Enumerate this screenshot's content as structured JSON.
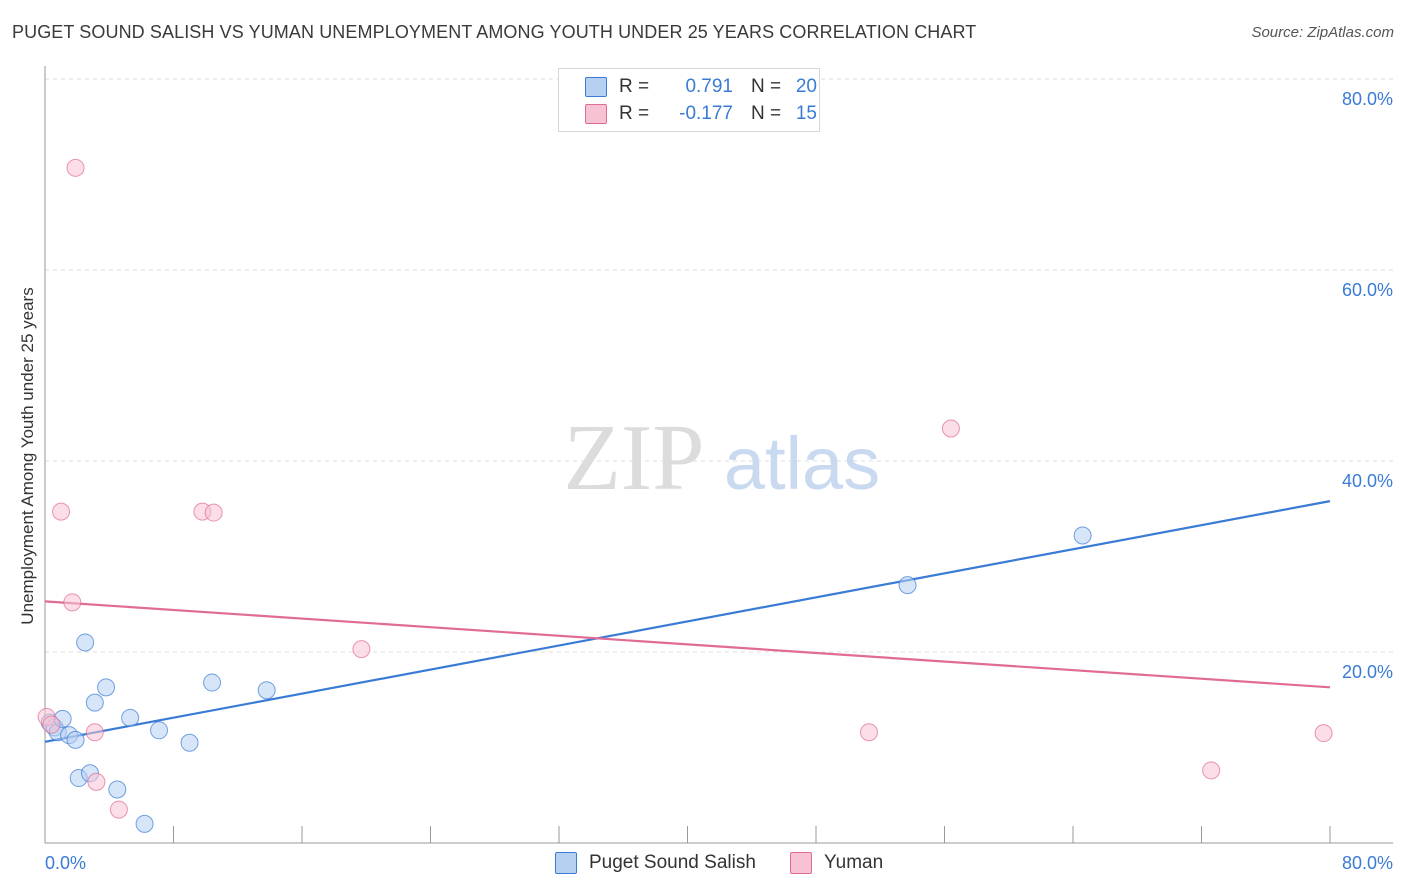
{
  "title": "PUGET SOUND SALISH VS YUMAN UNEMPLOYMENT AMONG YOUTH UNDER 25 YEARS CORRELATION CHART",
  "source": "Source: ZipAtlas.com",
  "watermark": {
    "zip": "ZIP",
    "atlas": "atlas"
  },
  "legend": {
    "rows": [
      {
        "r_label": "R =",
        "r_value": "0.791",
        "n_label": "N =",
        "n_value": "20"
      },
      {
        "r_label": "R =",
        "r_value": "-0.177",
        "n_label": "N =",
        "n_value": "15"
      }
    ]
  },
  "chart_data": {
    "type": "scatter",
    "title": "PUGET SOUND SALISH VS YUMAN UNEMPLOYMENT AMONG YOUTH UNDER 25 YEARS CORRELATION CHART",
    "xlabel": "",
    "ylabel": "Unemployment Among Youth under 25 years",
    "xlim": [
      0,
      80
    ],
    "ylim": [
      0,
      80
    ],
    "x_tick_labels": [
      "0.0%",
      "80.0%"
    ],
    "y_tick_labels": [
      "20.0%",
      "40.0%",
      "60.0%",
      "80.0%"
    ],
    "y_ticks": [
      20,
      40,
      60,
      80
    ],
    "x_minor_ticks": [
      8,
      16,
      24,
      32,
      40,
      48,
      56,
      64,
      72,
      80
    ],
    "grid": true,
    "series": [
      {
        "name": "Puget Sound Salish",
        "color": "#3a7bd5",
        "fill": "#b6d0f2",
        "r": 0.791,
        "n": 20,
        "points": [
          [
            0.3,
            12.6
          ],
          [
            0.6,
            12.1
          ],
          [
            0.8,
            11.6
          ],
          [
            1.1,
            13.0
          ],
          [
            1.5,
            11.3
          ],
          [
            1.9,
            10.8
          ],
          [
            2.1,
            6.8
          ],
          [
            2.5,
            21.0
          ],
          [
            2.8,
            7.3
          ],
          [
            3.1,
            14.7
          ],
          [
            3.8,
            16.3
          ],
          [
            4.5,
            5.6
          ],
          [
            5.3,
            13.1
          ],
          [
            6.2,
            2.0
          ],
          [
            7.1,
            11.8
          ],
          [
            9.0,
            10.5
          ],
          [
            10.4,
            16.8
          ],
          [
            13.8,
            16.0
          ],
          [
            53.7,
            27.0
          ],
          [
            64.6,
            32.2
          ]
        ],
        "trend": {
          "x": [
            0,
            80
          ],
          "y": [
            10.6,
            35.8
          ]
        }
      },
      {
        "name": "Yuman",
        "color": "#e06b95",
        "fill": "#f7c3d3",
        "r": -0.177,
        "n": 15,
        "points": [
          [
            0.1,
            13.2
          ],
          [
            0.4,
            12.4
          ],
          [
            1.0,
            34.7
          ],
          [
            1.7,
            25.2
          ],
          [
            1.9,
            70.7
          ],
          [
            3.1,
            11.6
          ],
          [
            3.2,
            6.4
          ],
          [
            4.6,
            3.5
          ],
          [
            9.8,
            34.7
          ],
          [
            10.5,
            34.6
          ],
          [
            19.7,
            20.3
          ],
          [
            51.3,
            11.6
          ],
          [
            56.4,
            43.4
          ],
          [
            72.6,
            7.6
          ],
          [
            79.6,
            11.5
          ]
        ],
        "trend": {
          "x": [
            0,
            80
          ],
          "y": [
            25.3,
            16.3
          ]
        }
      }
    ]
  }
}
